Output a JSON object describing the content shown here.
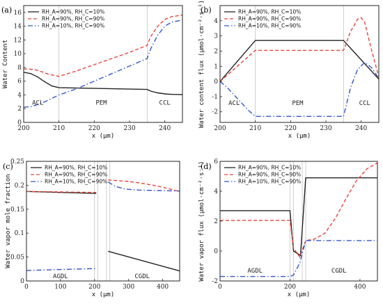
{
  "colors": {
    "black": "#222222",
    "red": "#e8453c",
    "blue": "#3355cc",
    "divider": "#bbbbbb"
  },
  "chart_data": [
    {
      "id": "a",
      "type": "line",
      "panel_label": "(a)",
      "xlabel": "x (μm)",
      "ylabel": "Water Content",
      "xlim": [
        200,
        245
      ],
      "ylim": [
        0,
        17
      ],
      "xticks": [
        200,
        210,
        220,
        230,
        240
      ],
      "yticks": [
        0,
        2,
        4,
        6,
        8,
        10,
        12,
        14,
        16
      ],
      "dividers": [
        210,
        235
      ],
      "regions": [
        {
          "label": "ACL",
          "x": 204,
          "y": 2.6
        },
        {
          "label": "PEM",
          "x": 222,
          "y": 2.6
        },
        {
          "label": "CCL",
          "x": 240,
          "y": 2.6
        }
      ],
      "legend_position": "top-left",
      "series": [
        {
          "name": "RH_A=90%, RH_C=10%",
          "color": "#222222",
          "dash": "solid",
          "x": [
            200,
            202,
            204,
            206,
            208,
            210,
            215,
            220,
            225,
            230,
            235,
            236,
            238,
            240,
            242,
            245
          ],
          "y": [
            7.3,
            7.1,
            6.6,
            5.9,
            5.3,
            5.05,
            5.0,
            4.95,
            4.9,
            4.85,
            4.8,
            4.55,
            4.3,
            4.15,
            4.08,
            4.05
          ]
        },
        {
          "name": "RH_A=90%, RH_C=90%",
          "color": "#e8453c",
          "dash": "dashed",
          "x": [
            200,
            203,
            205,
            207,
            210,
            215,
            220,
            225,
            230,
            235,
            236,
            238,
            240,
            242,
            245
          ],
          "y": [
            7.8,
            7.7,
            7.4,
            7.0,
            6.7,
            7.5,
            8.4,
            9.3,
            10.2,
            11.2,
            12.5,
            14.0,
            15.0,
            15.4,
            15.6
          ]
        },
        {
          "name": "RH_A=10%, RH_C=90%",
          "color": "#3355cc",
          "dash": "dashdot",
          "x": [
            200,
            202,
            204,
            206,
            208,
            210,
            215,
            220,
            225,
            230,
            235,
            236,
            238,
            240,
            242,
            245
          ],
          "y": [
            2.2,
            2.3,
            2.6,
            3.0,
            3.5,
            4.0,
            4.9,
            6.0,
            7.1,
            8.2,
            9.3,
            10.7,
            12.7,
            14.0,
            14.6,
            14.9
          ]
        }
      ]
    },
    {
      "id": "b",
      "type": "line",
      "panel_label": "(b)",
      "xlabel": "x (μm)",
      "ylabel": "Water content flux (μmol·cm⁻²·s⁻¹)",
      "xlim": [
        200,
        245
      ],
      "ylim": [
        -2.7,
        5.0
      ],
      "xticks": [
        200,
        210,
        220,
        230,
        240
      ],
      "yticks": [
        -2,
        -1,
        0,
        1,
        2,
        3,
        4
      ],
      "dividers": [
        210,
        235
      ],
      "regions": [
        {
          "label": "ACL",
          "x": 204,
          "y": -1.55
        },
        {
          "label": "PEM",
          "x": 222,
          "y": -1.55
        },
        {
          "label": "CCL",
          "x": 241,
          "y": -1.55
        }
      ],
      "legend_position": "top-left",
      "series": [
        {
          "name": "RH_A=90%, RH_C=10%",
          "color": "#222222",
          "dash": "solid",
          "x": [
            200,
            210,
            235,
            245
          ],
          "y": [
            0.0,
            2.7,
            2.7,
            0.15
          ]
        },
        {
          "name": "RH_A=90%, RH_C=90%",
          "color": "#e8453c",
          "dash": "dashed",
          "x": [
            200,
            210,
            235,
            237,
            239,
            240,
            241,
            243,
            245
          ],
          "y": [
            0.0,
            2.05,
            2.05,
            3.3,
            4.1,
            4.2,
            3.9,
            2.0,
            0.3
          ]
        },
        {
          "name": "RH_A=10%, RH_C=90%",
          "color": "#3355cc",
          "dash": "dashdot",
          "x": [
            200,
            202,
            204,
            206,
            208,
            210,
            235,
            237,
            239,
            241,
            243,
            245
          ],
          "y": [
            0.0,
            -0.4,
            -0.9,
            -1.4,
            -1.9,
            -2.3,
            -2.3,
            -0.4,
            0.8,
            1.25,
            0.9,
            0.2
          ]
        }
      ]
    },
    {
      "id": "c",
      "type": "line",
      "panel_label": "(c)",
      "xlabel": "x (μm)",
      "ylabel": "Water vapor mole fraction",
      "xlim": [
        0,
        450
      ],
      "ylim": [
        0,
        0.25
      ],
      "xticks": [
        0,
        100,
        200,
        300,
        400
      ],
      "yticks": [
        0,
        0.05,
        0.1,
        0.15,
        0.2,
        0.25
      ],
      "dividers": [
        200,
        210,
        235,
        245
      ],
      "regions": [
        {
          "label": "AGDL",
          "x": 100,
          "y": 0.006
        },
        {
          "label": "CGDL",
          "x": 340,
          "y": 0.006
        }
      ],
      "legend_position": "top-left",
      "series": [
        {
          "name": "RH_A=90%, RH_C=10%",
          "color": "#222222",
          "dash": "solid",
          "segments": [
            {
              "x": [
                0,
                205
              ],
              "y": [
                0.187,
                0.183
              ]
            },
            {
              "x": [
                240,
                450
              ],
              "y": [
                0.062,
                0.021
              ]
            }
          ]
        },
        {
          "name": "RH_A=90%, RH_C=90%",
          "color": "#e8453c",
          "dash": "dashed",
          "segments": [
            {
              "x": [
                0,
                205
              ],
              "y": [
                0.187,
                0.185
              ]
            },
            {
              "x": [
                240,
                300,
                350,
                400,
                450
              ],
              "y": [
                0.211,
                0.208,
                0.203,
                0.196,
                0.187
              ]
            }
          ]
        },
        {
          "name": "RH_A=10%, RH_C=90%",
          "color": "#3355cc",
          "dash": "dashdot",
          "segments": [
            {
              "x": [
                0,
                205
              ],
              "y": [
                0.022,
                0.026
              ]
            },
            {
              "x": [
                240,
                260,
                290,
                330,
                390,
                450
              ],
              "y": [
                0.207,
                0.198,
                0.192,
                0.19,
                0.189,
                0.188
              ]
            }
          ]
        }
      ]
    },
    {
      "id": "d",
      "type": "line",
      "panel_label": "(d)",
      "xlabel": "x (μm)",
      "ylabel": "Water vapor flux (μmol·cm⁻²·s⁻¹)",
      "xlim": [
        0,
        450
      ],
      "ylim": [
        -2,
        6
      ],
      "xticks": [
        0,
        200,
        400
      ],
      "yticks": [
        -2,
        0,
        2,
        4,
        6
      ],
      "dividers": [
        200,
        210,
        235,
        245
      ],
      "regions": [
        {
          "label": "AGDL",
          "x": 100,
          "y": -1.45
        },
        {
          "label": "CGDL",
          "x": 340,
          "y": -1.45
        }
      ],
      "legend_position": "top-left",
      "series": [
        {
          "name": "RH_A=90%, RH_C=10%",
          "color": "#222222",
          "dash": "solid",
          "x": [
            0,
            200,
            210,
            230,
            245,
            450
          ],
          "y": [
            2.7,
            2.7,
            0.0,
            -0.3,
            4.9,
            4.9
          ]
        },
        {
          "name": "RH_A=90%, RH_C=90%",
          "color": "#e8453c",
          "dash": "dashed",
          "x": [
            0,
            200,
            210,
            228,
            245,
            270,
            300,
            330,
            360,
            390,
            420,
            450
          ],
          "y": [
            2.05,
            2.05,
            0.2,
            -0.4,
            0.7,
            0.8,
            1.2,
            2.2,
            3.5,
            4.7,
            5.5,
            5.9
          ]
        },
        {
          "name": "RH_A=10%, RH_C=90%",
          "color": "#3355cc",
          "dash": "dashdot",
          "x": [
            0,
            200,
            210,
            228,
            245,
            300,
            450
          ],
          "y": [
            -1.7,
            -1.7,
            -1.6,
            -0.8,
            0.7,
            0.7,
            0.7
          ]
        }
      ]
    }
  ]
}
